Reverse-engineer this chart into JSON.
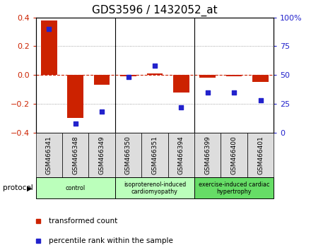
{
  "title": "GDS3596 / 1432052_at",
  "samples": [
    "GSM466341",
    "GSM466348",
    "GSM466349",
    "GSM466350",
    "GSM466351",
    "GSM466394",
    "GSM466399",
    "GSM466400",
    "GSM466401"
  ],
  "transformed_count": [
    0.38,
    -0.3,
    -0.07,
    -0.01,
    0.01,
    -0.12,
    -0.02,
    -0.01,
    -0.05
  ],
  "percentile_rank": [
    90,
    8,
    18,
    48,
    58,
    22,
    35,
    35,
    28
  ],
  "bar_color": "#cc2200",
  "dot_color": "#2222cc",
  "left_ylim": [
    -0.4,
    0.4
  ],
  "right_ylim": [
    0,
    100
  ],
  "left_yticks": [
    -0.4,
    -0.2,
    0,
    0.2,
    0.4
  ],
  "right_yticks": [
    0,
    25,
    50,
    75,
    100
  ],
  "right_yticklabels": [
    "0",
    "25",
    "50",
    "75",
    "100%"
  ],
  "grid_values": [
    -0.2,
    0,
    0.2
  ],
  "groups": [
    {
      "label": "control",
      "indices": [
        0,
        1,
        2
      ],
      "color": "#bbffbb"
    },
    {
      "label": "isoproterenol-induced\ncardiomyopathy",
      "indices": [
        3,
        4,
        5
      ],
      "color": "#bbffbb"
    },
    {
      "label": "exercise-induced cardiac\nhypertrophy",
      "indices": [
        6,
        7,
        8
      ],
      "color": "#66dd66"
    }
  ],
  "group_boundaries": [
    2.5,
    5.5
  ],
  "protocol_label": "protocol",
  "legend_red": "transformed count",
  "legend_blue": "percentile rank within the sample",
  "background_color": "#ffffff",
  "sample_box_color": "#dddddd",
  "tick_label_fontsize": 6.5,
  "title_fontsize": 11
}
